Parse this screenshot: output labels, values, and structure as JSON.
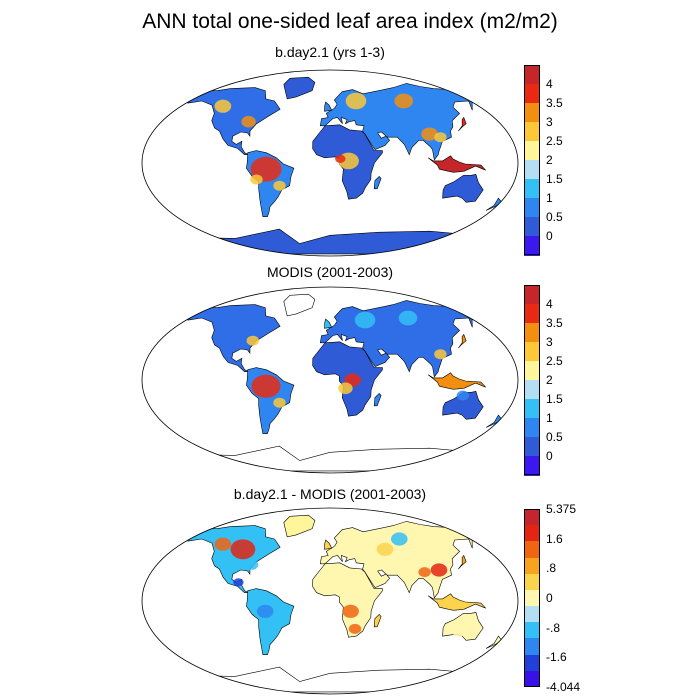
{
  "figure": {
    "title": "ANN total one-sided leaf area index (m2/m2)"
  },
  "panels": [
    {
      "title": "b.day2.1 (yrs 1-3)",
      "variable": "model",
      "colorbar": {
        "colors": [
          "#3b18ee",
          "#2f5bd6",
          "#2f86f0",
          "#33c0f5",
          "#b4def2",
          "#fff59a",
          "#fcc837",
          "#f28f10",
          "#e82a12",
          "#c4262a"
        ],
        "labels": [
          "0",
          "0.5",
          "1",
          "1.5",
          "2",
          "2.5",
          "3",
          "3.5",
          "4"
        ]
      }
    },
    {
      "title": "MODIS (2001-2003)",
      "variable": "observed",
      "colorbar": {
        "colors": [
          "#3b18ee",
          "#2f5bd6",
          "#2f86f0",
          "#33c0f5",
          "#b4def2",
          "#fff59a",
          "#fcc837",
          "#f28f10",
          "#e82a12",
          "#c4262a"
        ],
        "labels": [
          "0",
          "0.5",
          "1",
          "1.5",
          "2",
          "2.5",
          "3",
          "3.5",
          "4"
        ]
      }
    },
    {
      "title": "b.day2.1 - MODIS (2001-2003)",
      "variable": "difference",
      "colorbar": {
        "colors": [
          "#3b0fe8",
          "#2140d8",
          "#2f86f0",
          "#33c0f5",
          "#b4def2",
          "#fff7b0",
          "#fcd34d",
          "#f6a41d",
          "#ef6512",
          "#e32514",
          "#c3262e"
        ],
        "labels": [
          "-4.044",
          "-1.6",
          "-.8",
          "0",
          ".8",
          "1.6",
          "5.375"
        ]
      }
    }
  ]
}
